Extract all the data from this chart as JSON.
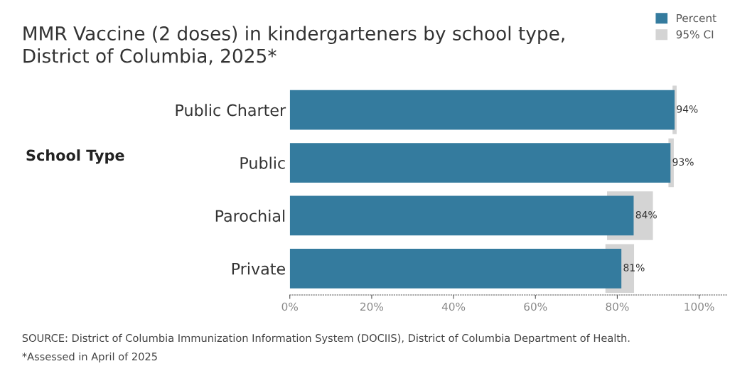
{
  "chart_data": {
    "type": "bar",
    "orientation": "horizontal",
    "title": "MMR Vaccine (2 doses) in kindergarteners by school type,\nDistrict of Columbia, 2025*",
    "ylabel": "School Type",
    "categories": [
      "Public Charter",
      "Public",
      "Parochial",
      "Private"
    ],
    "series": [
      {
        "name": "Percent",
        "color": "#347b9e",
        "values": [
          94,
          93,
          84,
          81
        ],
        "value_labels": [
          "94%",
          "93%",
          "84%",
          "81%"
        ]
      },
      {
        "name": "95% CI",
        "color": "#d4d4d4",
        "base": [
          93.5,
          92.5,
          77.5,
          77.1
        ],
        "values": [
          1.0,
          1.3,
          11.2,
          7.0
        ]
      }
    ],
    "xlim": [
      0,
      107
    ],
    "xticks": [
      {
        "value": 0,
        "label": "0%"
      },
      {
        "value": 20,
        "label": "20%"
      },
      {
        "value": 40,
        "label": "40%"
      },
      {
        "value": 60,
        "label": "60%"
      },
      {
        "value": 80,
        "label": "80%"
      },
      {
        "value": 100,
        "label": "100%"
      }
    ],
    "grid": false,
    "legend": "top right",
    "annotations": [
      "SOURCE: District of Columbia Immunization Information System (DOCIIS), District of Columbia Department of Health.",
      "*Assessed in April of 2025"
    ]
  }
}
